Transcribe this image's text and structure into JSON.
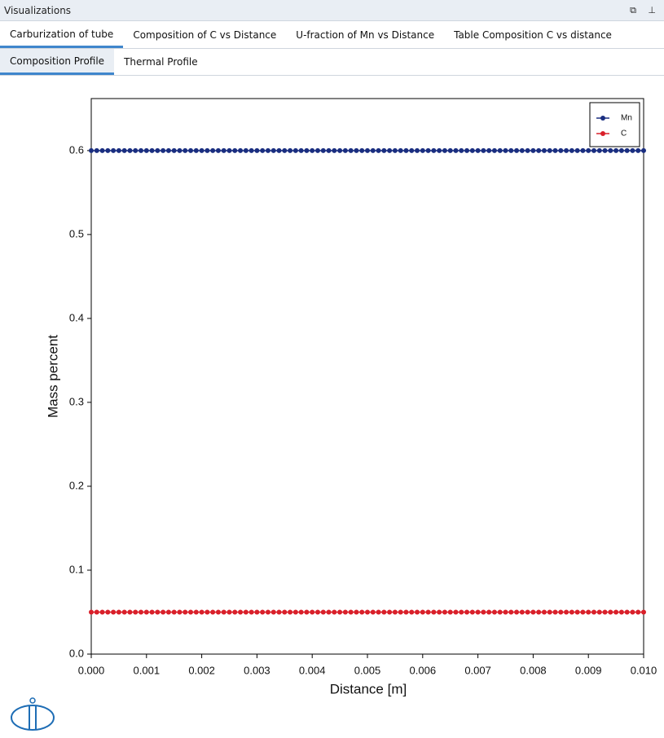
{
  "window_title": "Visualizations",
  "tabs": [
    "Carburization of tube",
    "Composition of C vs Distance",
    "U-fraction of Mn vs Distance",
    "Table Composition C vs distance"
  ],
  "subtabs": [
    "Composition Profile",
    "Thermal Profile"
  ],
  "chart_data": {
    "type": "line",
    "xlabel": "Distance [m]",
    "ylabel": "Mass percent",
    "x": [
      0,
      0.0001,
      0.0002,
      0.0003,
      0.0004,
      0.0005,
      0.0006,
      0.0007,
      0.0008,
      0.0009,
      0.001,
      0.0011,
      0.0012,
      0.0013,
      0.0014,
      0.0015,
      0.0016,
      0.0017,
      0.0018,
      0.0019,
      0.002,
      0.0021,
      0.0022,
      0.0023,
      0.0024,
      0.0025,
      0.0026,
      0.0027,
      0.0028,
      0.0029,
      0.003,
      0.0031,
      0.0032,
      0.0033,
      0.0034,
      0.0035,
      0.0036,
      0.0037,
      0.0038,
      0.0039,
      0.004,
      0.0041,
      0.0042,
      0.0043,
      0.0044,
      0.0045,
      0.0046,
      0.0047,
      0.0048,
      0.0049,
      0.005,
      0.0051,
      0.0052,
      0.0053,
      0.0054,
      0.0055,
      0.0056,
      0.0057,
      0.0058,
      0.0059,
      0.006,
      0.0061,
      0.0062,
      0.0063,
      0.0064,
      0.0065,
      0.0066,
      0.0067,
      0.0068,
      0.0069,
      0.007,
      0.0071,
      0.0072,
      0.0073,
      0.0074,
      0.0075,
      0.0076,
      0.0077,
      0.0078,
      0.0079,
      0.008,
      0.0081,
      0.0082,
      0.0083,
      0.0084,
      0.0085,
      0.0086,
      0.0087,
      0.0088,
      0.0089,
      0.009,
      0.0091,
      0.0092,
      0.0093,
      0.0094,
      0.0095,
      0.0096,
      0.0097,
      0.0098,
      0.0099,
      0.01
    ],
    "series": [
      {
        "name": "Mn",
        "color": "#1a2e80",
        "values": [
          0.6,
          0.6,
          0.6,
          0.6,
          0.6,
          0.6,
          0.6,
          0.6,
          0.6,
          0.6,
          0.6,
          0.6,
          0.6,
          0.6,
          0.6,
          0.6,
          0.6,
          0.6,
          0.6,
          0.6,
          0.6,
          0.6,
          0.6,
          0.6,
          0.6,
          0.6,
          0.6,
          0.6,
          0.6,
          0.6,
          0.6,
          0.6,
          0.6,
          0.6,
          0.6,
          0.6,
          0.6,
          0.6,
          0.6,
          0.6,
          0.6,
          0.6,
          0.6,
          0.6,
          0.6,
          0.6,
          0.6,
          0.6,
          0.6,
          0.6,
          0.6,
          0.6,
          0.6,
          0.6,
          0.6,
          0.6,
          0.6,
          0.6,
          0.6,
          0.6,
          0.6,
          0.6,
          0.6,
          0.6,
          0.6,
          0.6,
          0.6,
          0.6,
          0.6,
          0.6,
          0.6,
          0.6,
          0.6,
          0.6,
          0.6,
          0.6,
          0.6,
          0.6,
          0.6,
          0.6,
          0.6,
          0.6,
          0.6,
          0.6,
          0.6,
          0.6,
          0.6,
          0.6,
          0.6,
          0.6,
          0.6,
          0.6,
          0.6,
          0.6,
          0.6,
          0.6,
          0.6,
          0.6,
          0.6,
          0.6,
          0.6
        ]
      },
      {
        "name": "C",
        "color": "#d9202a",
        "values": [
          0.05,
          0.05,
          0.05,
          0.05,
          0.05,
          0.05,
          0.05,
          0.05,
          0.05,
          0.05,
          0.05,
          0.05,
          0.05,
          0.05,
          0.05,
          0.05,
          0.05,
          0.05,
          0.05,
          0.05,
          0.05,
          0.05,
          0.05,
          0.05,
          0.05,
          0.05,
          0.05,
          0.05,
          0.05,
          0.05,
          0.05,
          0.05,
          0.05,
          0.05,
          0.05,
          0.05,
          0.05,
          0.05,
          0.05,
          0.05,
          0.05,
          0.05,
          0.05,
          0.05,
          0.05,
          0.05,
          0.05,
          0.05,
          0.05,
          0.05,
          0.05,
          0.05,
          0.05,
          0.05,
          0.05,
          0.05,
          0.05,
          0.05,
          0.05,
          0.05,
          0.05,
          0.05,
          0.05,
          0.05,
          0.05,
          0.05,
          0.05,
          0.05,
          0.05,
          0.05,
          0.05,
          0.05,
          0.05,
          0.05,
          0.05,
          0.05,
          0.05,
          0.05,
          0.05,
          0.05,
          0.05,
          0.05,
          0.05,
          0.05,
          0.05,
          0.05,
          0.05,
          0.05,
          0.05,
          0.05,
          0.05,
          0.05,
          0.05,
          0.05,
          0.05,
          0.05,
          0.05,
          0.05,
          0.05,
          0.05,
          0.05
        ]
      }
    ],
    "xlim": [
      0,
      0.01
    ],
    "xticks": [
      {
        "value": 0,
        "label": "0.000"
      },
      {
        "value": 0.001,
        "label": "0.001"
      },
      {
        "value": 0.002,
        "label": "0.002"
      },
      {
        "value": 0.003,
        "label": "0.003"
      },
      {
        "value": 0.004,
        "label": "0.004"
      },
      {
        "value": 0.005,
        "label": "0.005"
      },
      {
        "value": 0.006,
        "label": "0.006"
      },
      {
        "value": 0.007,
        "label": "0.007"
      },
      {
        "value": 0.008,
        "label": "0.008"
      },
      {
        "value": 0.009,
        "label": "0.009"
      },
      {
        "value": 0.01,
        "label": "0.010"
      }
    ],
    "ylim": [
      0,
      0.662
    ],
    "yticks": [
      {
        "value": 0,
        "label": "0.0"
      },
      0.1,
      0.2,
      0.3,
      0.4,
      0.5,
      0.6
    ],
    "legend": "upper right",
    "grid": false
  }
}
